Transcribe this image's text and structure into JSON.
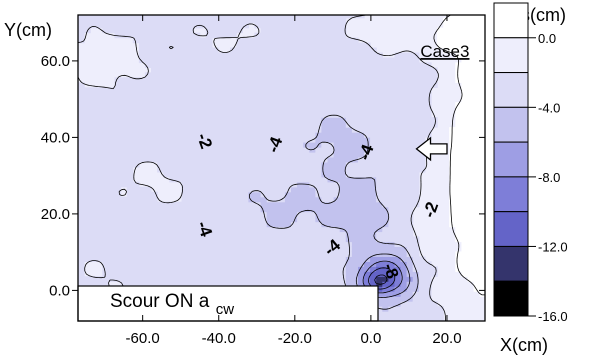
{
  "chart_data": {
    "type": "contour",
    "xlabel": "X(cm)",
    "ylabel": "Y(cm)",
    "xlim": [
      -77,
      30
    ],
    "ylim": [
      -8,
      72
    ],
    "x_ticks": [
      -60,
      -40,
      -20,
      0,
      20
    ],
    "x_tick_labels": [
      "-60.0",
      "-40.0",
      "-20.0",
      "0.0",
      "20.0"
    ],
    "y_ticks": [
      0,
      20,
      40,
      60
    ],
    "y_tick_labels": [
      "0.0",
      "20.0",
      "40.0",
      "60.0"
    ],
    "colorbar": {
      "title": "Zs(cm)",
      "min": -16,
      "max": 2,
      "levels": [
        2,
        0,
        -2,
        -4,
        -6,
        -8,
        -10,
        -12,
        -14,
        -16
      ],
      "colors": [
        "#ffffff",
        "#eeeefc",
        "#dcdcf6",
        "#c2c2ee",
        "#9e9ee4",
        "#7e7ed8",
        "#6464c8",
        "#34346c",
        "#000000"
      ],
      "tick_values": [
        0,
        -4,
        -8,
        -12,
        -16
      ],
      "tick_labels": [
        "0.0",
        "-4.0",
        "-8.0",
        "-12.0",
        "-16.0"
      ]
    },
    "contour_labels": [
      {
        "text": "-2",
        "x": -44,
        "y": 39,
        "angle": 70
      },
      {
        "text": "-4",
        "x": -25,
        "y": 38,
        "angle": -70
      },
      {
        "text": "-4",
        "x": -1,
        "y": 36,
        "angle": -70
      },
      {
        "text": "-2",
        "x": 16,
        "y": 21,
        "angle": -70
      },
      {
        "text": "-4",
        "x": -44,
        "y": 16,
        "angle": 70
      },
      {
        "text": "-4",
        "x": -10,
        "y": 11,
        "angle": -40
      },
      {
        "text": "-8",
        "x": 5,
        "y": 5,
        "angle": 70
      }
    ],
    "annotations": {
      "case": {
        "text": "Case3",
        "x": 13,
        "y": 61
      },
      "flow_arrow": {
        "x_tail": 20,
        "x_head": 12,
        "y": 37
      }
    },
    "note": {
      "main": "Scour ON a",
      "sub": "cw"
    }
  }
}
